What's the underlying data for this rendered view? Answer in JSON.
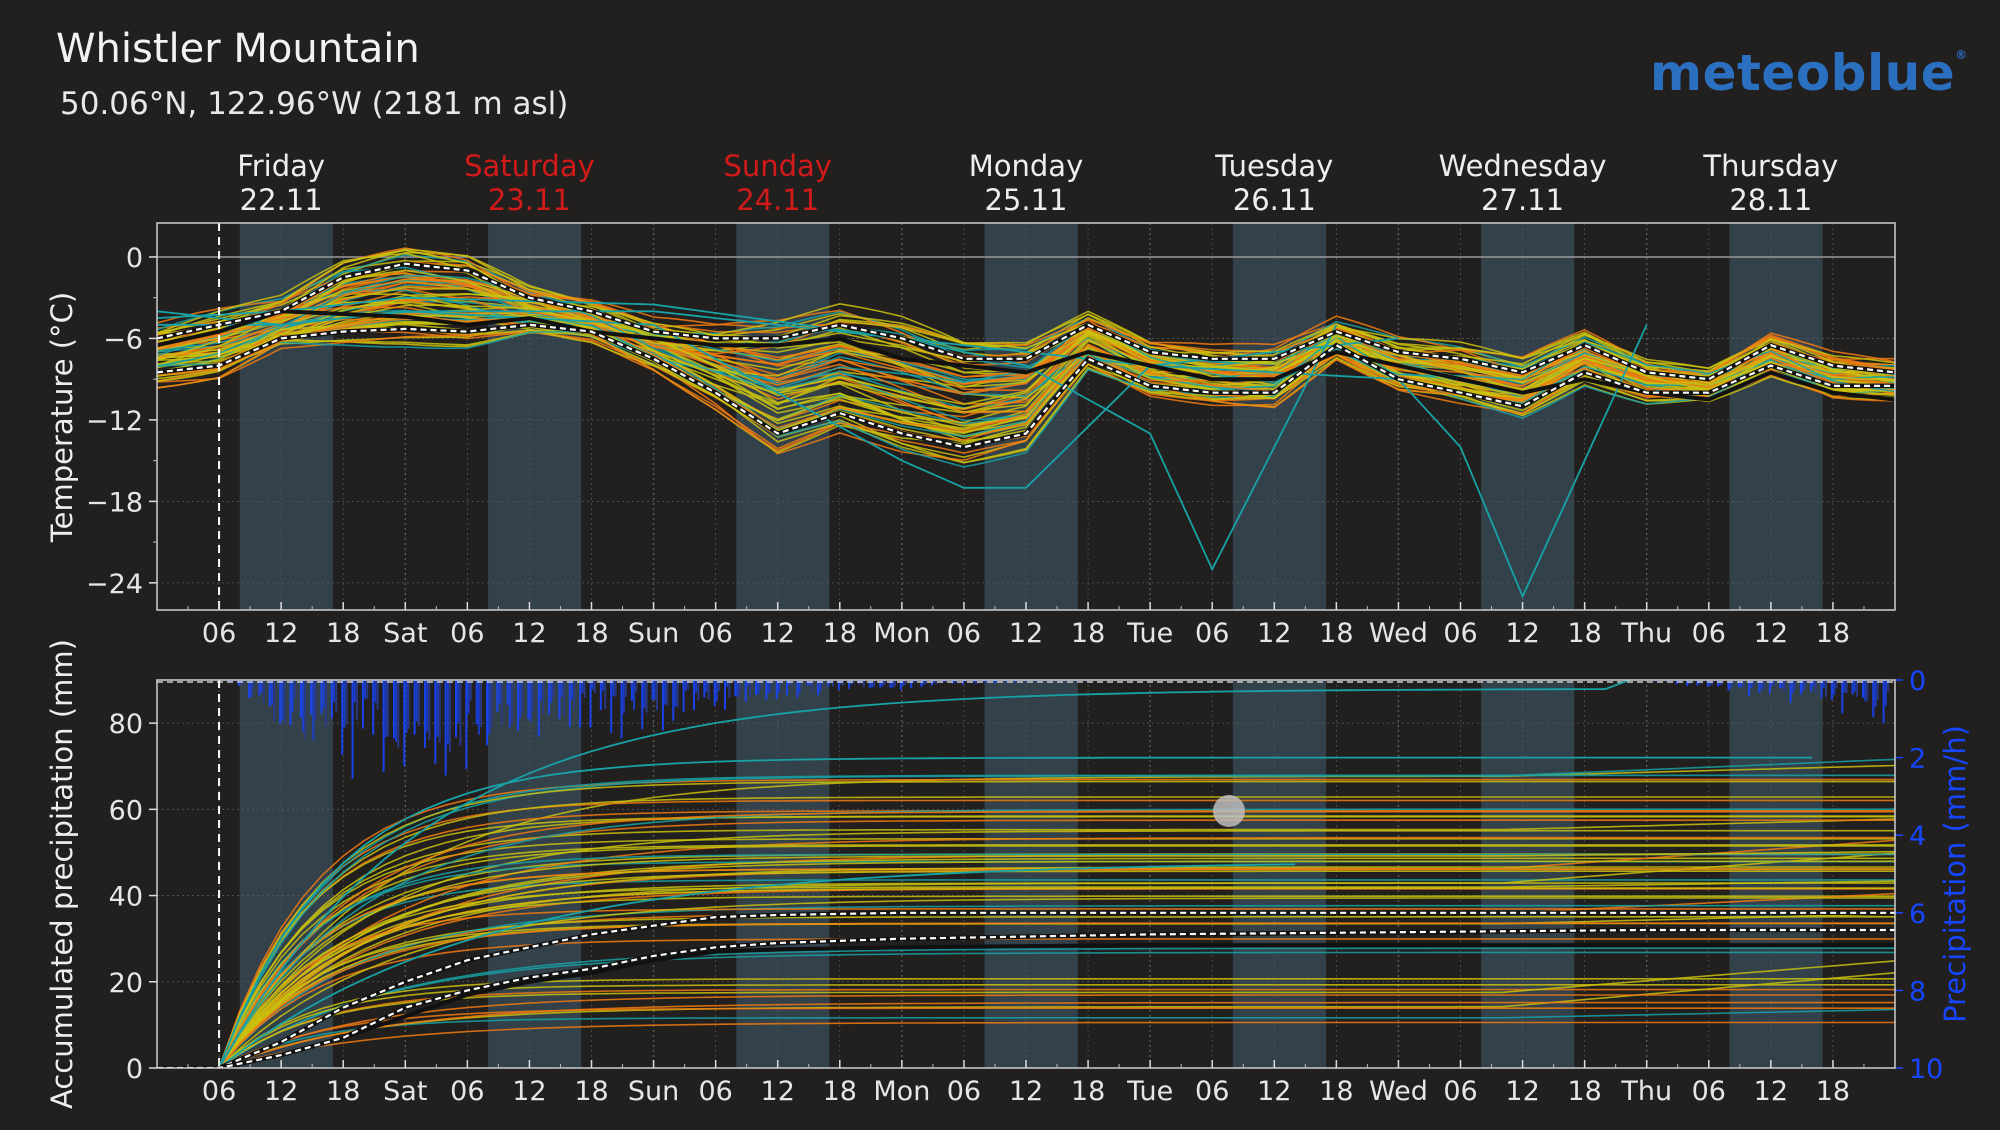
{
  "header": {
    "title": "Whistler Mountain",
    "subtitle": "50.06°N, 122.96°W (2181 m asl)",
    "brand": "meteoblue"
  },
  "colors": {
    "background": "#221f1f",
    "day_band": "#33414b",
    "weekend_red": "#d11a1a",
    "precip_blue": "#1746ff",
    "brand_blue": "#2a6fc0",
    "member_orange": "#f07a10",
    "member_yellow": "#c9c20e",
    "member_teal": "#17a2a6"
  },
  "chart_data": [
    {
      "type": "line",
      "panel": "temperature",
      "ylabel": "Temperature (°C)",
      "ylim": [
        -26,
        2.5
      ],
      "yticks": [
        0,
        -6,
        -12,
        -18,
        -24
      ],
      "x_unit": "hours from 22.11 00:00",
      "xlim": [
        0,
        168
      ],
      "day_headers": [
        {
          "day": "Friday",
          "date": "22.11",
          "weekend": false
        },
        {
          "day": "Saturday",
          "date": "23.11",
          "weekend": true
        },
        {
          "day": "Sunday",
          "date": "24.11",
          "weekend": true
        },
        {
          "day": "Monday",
          "date": "25.11",
          "weekend": false
        },
        {
          "day": "Tuesday",
          "date": "26.11",
          "weekend": false
        },
        {
          "day": "Wednesday",
          "date": "27.11",
          "weekend": false
        },
        {
          "day": "Thursday",
          "date": "28.11",
          "weekend": false
        }
      ],
      "xtick_labels": [
        "06",
        "12",
        "18",
        "Sat",
        "06",
        "12",
        "18",
        "Sun",
        "06",
        "12",
        "18",
        "Mon",
        "06",
        "12",
        "18",
        "Tue",
        "06",
        "12",
        "18",
        "Wed",
        "06",
        "12",
        "18",
        "Thu",
        "06",
        "12",
        "18"
      ],
      "current_time_hour": 6,
      "grid": true,
      "series": [
        {
          "role": "median",
          "x": [
            0,
            6,
            12,
            18,
            24,
            30,
            36,
            42,
            48,
            54,
            60,
            66,
            72,
            78,
            84,
            90,
            96,
            102,
            108,
            114,
            120,
            126,
            132,
            138,
            144,
            150,
            156,
            162,
            168
          ],
          "y": [
            -6.5,
            -5.5,
            -4,
            -4.2,
            -4.4,
            -5,
            -4.5,
            -5.5,
            -6,
            -6.5,
            -6.5,
            -6,
            -7.5,
            -8,
            -8.5,
            -7,
            -8,
            -9,
            -9,
            -7,
            -8,
            -9,
            -10,
            -9,
            -10,
            -10.5,
            -8.5,
            -10,
            -10.5
          ]
        },
        {
          "role": "upper_quantile",
          "x": [
            0,
            6,
            12,
            18,
            24,
            30,
            36,
            42,
            48,
            54,
            60,
            66,
            72,
            78,
            84,
            90,
            96,
            102,
            108,
            114,
            120,
            126,
            132,
            138,
            144,
            150,
            156,
            162,
            168
          ],
          "y": [
            -6,
            -5,
            -4,
            -1.5,
            -0.5,
            -1,
            -3,
            -4,
            -5.5,
            -6,
            -6,
            -5,
            -6,
            -7.5,
            -7.5,
            -5,
            -7,
            -7.5,
            -7.5,
            -5.5,
            -7,
            -7.5,
            -8.5,
            -6.5,
            -8.5,
            -9,
            -6.5,
            -8,
            -8.5
          ]
        },
        {
          "role": "lower_quantile",
          "x": [
            0,
            6,
            12,
            18,
            24,
            30,
            36,
            42,
            48,
            54,
            60,
            66,
            72,
            78,
            84,
            90,
            96,
            102,
            108,
            114,
            120,
            126,
            132,
            138,
            144,
            150,
            156,
            162,
            168
          ],
          "y": [
            -8.5,
            -8,
            -6,
            -5.5,
            -5.3,
            -5.5,
            -5,
            -5.5,
            -7.5,
            -10,
            -13,
            -11.5,
            -13,
            -14,
            -13,
            -7.5,
            -9.5,
            -10,
            -10,
            -6.5,
            -9,
            -10,
            -11,
            -8.5,
            -10,
            -10,
            -8,
            -9.5,
            -9.5
          ]
        },
        {
          "role": "ensemble_teal_outlier_1",
          "x": [
            0,
            12,
            24,
            48,
            72,
            84,
            96,
            102,
            114
          ],
          "y": [
            -4.5,
            -4,
            -3,
            -3.5,
            -6,
            -8,
            -13,
            -23,
            -5
          ]
        },
        {
          "role": "ensemble_teal_outlier_2",
          "x": [
            0,
            12,
            24,
            48,
            72,
            96,
            120,
            126,
            132,
            144
          ],
          "y": [
            -4,
            -5,
            -4,
            -4,
            -6,
            -8,
            -9,
            -14,
            -25,
            -5
          ]
        },
        {
          "role": "ensemble_teal_outlier_3",
          "x": [
            0,
            12,
            24,
            48,
            72,
            78,
            84,
            96,
            120
          ],
          "y": [
            -5,
            -5,
            -4,
            -5,
            -15,
            -17,
            -17,
            -8,
            -6
          ]
        }
      ]
    },
    {
      "type": "line",
      "panel": "precipitation",
      "ylabel": "Accumulated precipitation (mm)",
      "y2label": "Precipitation (mm/h)",
      "ylim": [
        0,
        90
      ],
      "yticks": [
        0,
        20,
        40,
        60,
        80
      ],
      "y2lim": [
        0,
        10
      ],
      "y2ticks": [
        0,
        2,
        4,
        6,
        8,
        10
      ],
      "y2_inverted": true,
      "xlim": [
        0,
        168
      ],
      "xtick_labels": [
        "06",
        "12",
        "18",
        "Sat",
        "06",
        "12",
        "18",
        "Sun",
        "06",
        "12",
        "18",
        "Mon",
        "06",
        "12",
        "18",
        "Tue",
        "06",
        "12",
        "18",
        "Wed",
        "06",
        "12",
        "18",
        "Thu",
        "06",
        "12",
        "18"
      ],
      "current_time_hour": 6,
      "series": [
        {
          "role": "median",
          "x": [
            0,
            6,
            12,
            18,
            24,
            30,
            36,
            42,
            48,
            54,
            60,
            72,
            96,
            120,
            144,
            168
          ],
          "y": [
            0,
            0,
            3,
            7,
            12,
            17,
            20,
            22,
            25,
            27,
            27.5,
            28,
            28.5,
            28.5,
            28.5,
            28.5
          ]
        },
        {
          "role": "upper_quantile",
          "x": [
            0,
            6,
            12,
            18,
            24,
            30,
            36,
            42,
            48,
            54,
            60,
            72,
            96,
            120,
            144,
            168
          ],
          "y": [
            0,
            0,
            6,
            14,
            20,
            25,
            28,
            31,
            33,
            35,
            35.5,
            36,
            36,
            36,
            36,
            36
          ]
        },
        {
          "role": "lower_quantile",
          "x": [
            0,
            6,
            12,
            18,
            24,
            30,
            36,
            42,
            48,
            54,
            60,
            72,
            96,
            120,
            144,
            168
          ],
          "y": [
            0,
            0,
            3,
            7,
            14,
            18,
            21,
            23,
            26,
            28,
            29,
            30,
            31,
            31.5,
            32,
            32
          ]
        }
      ],
      "hourly_rate_profile": {
        "x": [
          0,
          6,
          9,
          12,
          15,
          18,
          21,
          24,
          27,
          30,
          33,
          36,
          39,
          42,
          45,
          48,
          51,
          54,
          57,
          60,
          66,
          72,
          84,
          96,
          120,
          144,
          150,
          156,
          162,
          168
        ],
        "y": [
          0,
          0,
          0.5,
          1.5,
          1.8,
          2.0,
          1.9,
          2.0,
          2.2,
          1.8,
          1.5,
          1.3,
          1.1,
          1.0,
          1.2,
          1.1,
          0.9,
          0.7,
          0.5,
          0.4,
          0.3,
          0.2,
          0.05,
          0,
          0,
          0,
          0.2,
          0.4,
          0.7,
          1.0
        ]
      }
    }
  ]
}
